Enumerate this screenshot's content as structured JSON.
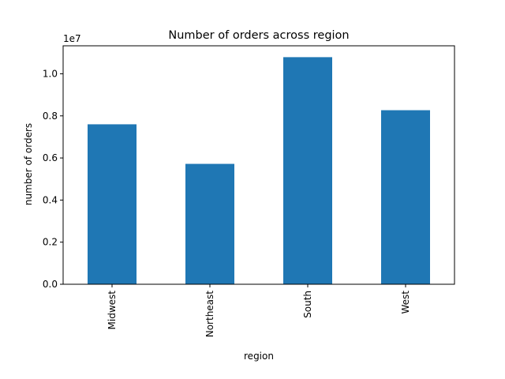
{
  "chart_data": {
    "type": "bar",
    "title": "Number of orders across region",
    "xlabel": "region",
    "ylabel": "number of orders",
    "y_offset_label": "1e7",
    "categories": [
      "Midwest",
      "Northeast",
      "South",
      "West"
    ],
    "values": [
      7600000,
      5720000,
      10790000,
      8270000
    ],
    "ylim": [
      0,
      11330000
    ],
    "y_ticks": [
      0,
      2000000,
      4000000,
      6000000,
      8000000,
      10000000
    ],
    "y_tick_labels": [
      "0.0",
      "0.2",
      "0.4",
      "0.6",
      "0.8",
      "1.0"
    ],
    "bar_color": "#1f77b4",
    "grid": false,
    "legend": "none"
  }
}
